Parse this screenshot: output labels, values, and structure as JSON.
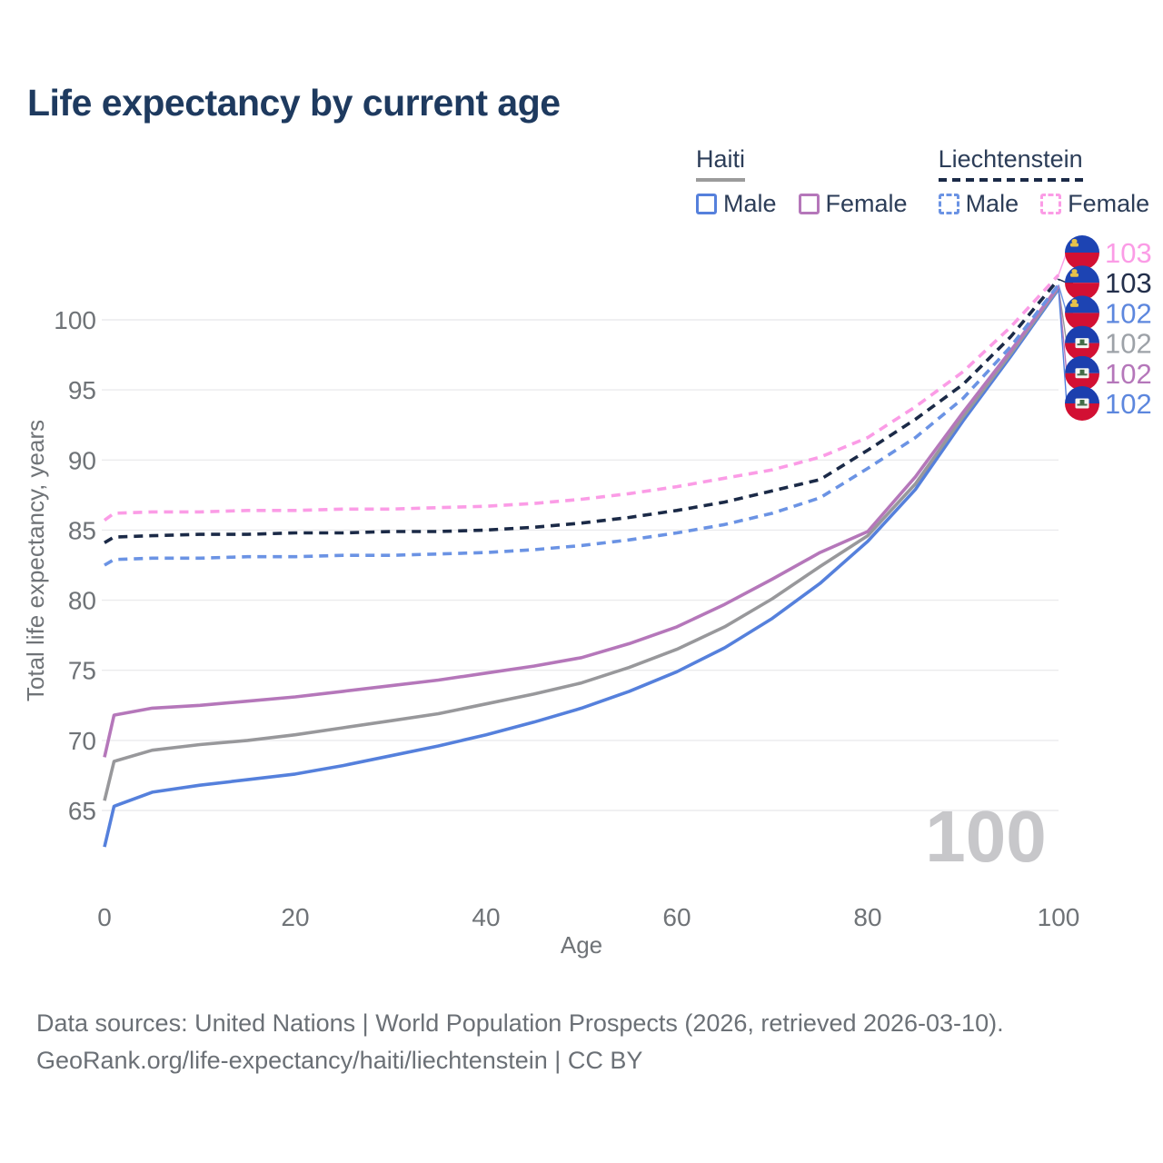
{
  "page": {
    "title": "Life expectancy by current age"
  },
  "legend": {
    "groups": [
      {
        "country": "Haiti",
        "line_style": "solid",
        "items": [
          {
            "label": "Male",
            "color": "#5580dc"
          },
          {
            "label": "Female",
            "color": "#b577ba"
          }
        ]
      },
      {
        "country": "Liechtenstein",
        "line_style": "dashed",
        "items": [
          {
            "label": "Male",
            "color": "#6b93e4"
          },
          {
            "label": "Female",
            "color": "#fb9ce6"
          }
        ]
      }
    ]
  },
  "chart_data": {
    "type": "line",
    "title": "Life expectancy by current age",
    "watermark": "100",
    "x_axis": {
      "label": "Age",
      "ticks": [
        0,
        20,
        40,
        60,
        80,
        100
      ],
      "range": [
        0,
        100
      ]
    },
    "y_axis": {
      "label": "Total life expectancy, years",
      "ticks": [
        65,
        70,
        75,
        80,
        85,
        90,
        95,
        100
      ],
      "range": [
        62,
        104
      ]
    },
    "grid": "horizontal",
    "x": [
      0,
      1,
      5,
      10,
      15,
      20,
      25,
      30,
      35,
      40,
      45,
      50,
      55,
      60,
      65,
      70,
      75,
      80,
      85,
      90,
      95,
      100
    ],
    "series": [
      {
        "key": "haiti-male",
        "label": "Haiti male",
        "color": "#5580dc",
        "dashed": false,
        "values": [
          62.4,
          65.3,
          66.3,
          66.8,
          67.2,
          67.6,
          68.2,
          68.9,
          69.6,
          70.4,
          71.3,
          72.3,
          73.5,
          74.9,
          76.6,
          78.7,
          81.2,
          84.2,
          87.9,
          92.8,
          97.4,
          102.2
        ]
      },
      {
        "key": "haiti-both",
        "label": "Haiti both sexes",
        "color": "#98989b",
        "dashed": false,
        "values": [
          65.7,
          68.5,
          69.3,
          69.7,
          70.0,
          70.4,
          70.9,
          71.4,
          71.9,
          72.6,
          73.3,
          74.1,
          75.2,
          76.5,
          78.1,
          80.1,
          82.4,
          84.6,
          88.3,
          93.1,
          97.6,
          102.3
        ]
      },
      {
        "key": "haiti-female",
        "label": "Haiti female",
        "color": "#b577ba",
        "dashed": false,
        "values": [
          68.8,
          71.8,
          72.3,
          72.5,
          72.8,
          73.1,
          73.5,
          73.9,
          74.3,
          74.8,
          75.3,
          75.9,
          76.9,
          78.1,
          79.7,
          81.5,
          83.4,
          84.9,
          88.8,
          93.4,
          97.8,
          102.4
        ]
      },
      {
        "key": "liechtenstein-male",
        "label": "Liechtenstein male",
        "color": "#6b93e4",
        "dashed": true,
        "values": [
          82.5,
          82.9,
          83.0,
          83.0,
          83.1,
          83.1,
          83.2,
          83.2,
          83.3,
          83.4,
          83.6,
          83.9,
          84.3,
          84.8,
          85.4,
          86.2,
          87.3,
          89.4,
          91.6,
          94.4,
          98.1,
          102.5
        ]
      },
      {
        "key": "liechtenstein-both",
        "label": "Liechtenstein both sexes",
        "color": "#1b2a47",
        "dashed": true,
        "values": [
          84.1,
          84.5,
          84.6,
          84.7,
          84.7,
          84.8,
          84.8,
          84.9,
          84.9,
          85.0,
          85.2,
          85.5,
          85.9,
          86.4,
          87.0,
          87.8,
          88.6,
          90.7,
          92.9,
          95.4,
          98.8,
          102.9
        ]
      },
      {
        "key": "liechtenstein-female",
        "label": "Liechtenstein female",
        "color": "#fb9ce6",
        "dashed": true,
        "values": [
          85.7,
          86.2,
          86.3,
          86.3,
          86.4,
          86.4,
          86.5,
          86.5,
          86.6,
          86.7,
          86.9,
          87.2,
          87.6,
          88.1,
          88.7,
          89.3,
          90.2,
          91.6,
          93.8,
          96.3,
          99.5,
          103.2
        ]
      }
    ],
    "end_labels": [
      {
        "series": "liechtenstein-female",
        "value": "103",
        "color": "#fb9ce6",
        "flag": "liechtenstein"
      },
      {
        "series": "liechtenstein-both",
        "value": "103",
        "color": "#232f4b",
        "flag": "liechtenstein"
      },
      {
        "series": "liechtenstein-male",
        "value": "102",
        "color": "#5d87de",
        "flag": "liechtenstein"
      },
      {
        "series": "haiti-both",
        "value": "102",
        "color": "#9da2a8",
        "flag": "haiti"
      },
      {
        "series": "haiti-female",
        "value": "102",
        "color": "#b577ba",
        "flag": "haiti"
      },
      {
        "series": "haiti-male",
        "value": "102",
        "color": "#5d87de",
        "flag": "haiti"
      }
    ]
  },
  "footer": {
    "line1": "Data sources: United Nations | World Population Prospects (2026, retrieved 2026-03-10).",
    "line2": "GeoRank.org/life-expectancy/haiti/liechtenstein | CC BY"
  }
}
